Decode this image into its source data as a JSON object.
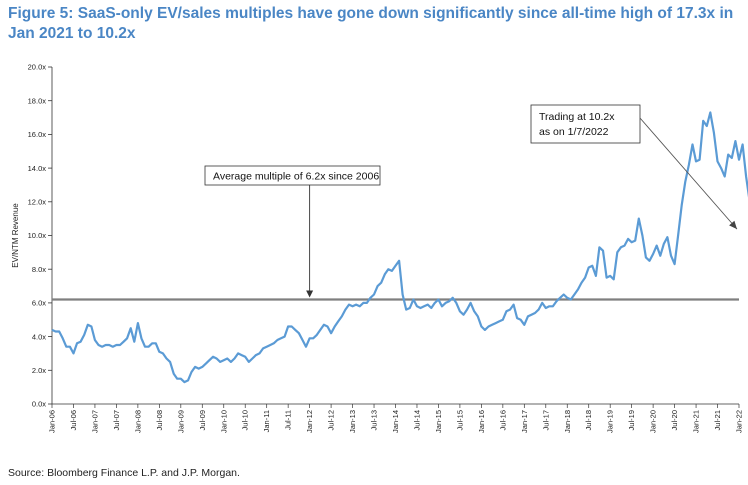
{
  "title": "Figure 5: SaaS-only EV/sales multiples have gone down significantly since all-time high of 17.3x in Jan 2021 to 10.2x",
  "source": "Source: Bloomberg Finance L.P. and J.P. Morgan.",
  "colors": {
    "title": "#4a86c5",
    "line": "#5b9bd5",
    "average": "#7f7f7f"
  },
  "chart_data": {
    "type": "line",
    "ylabel": "EV/NTM Revenue",
    "ylim": [
      0,
      20
    ],
    "y_ticks": [
      0,
      2,
      4,
      6,
      8,
      10,
      12,
      14,
      16,
      18,
      20
    ],
    "y_tick_labels": [
      "0.0x",
      "2.0x",
      "4.0x",
      "6.0x",
      "8.0x",
      "10.0x",
      "12.0x",
      "14.0x",
      "16.0x",
      "18.0x",
      "20.0x"
    ],
    "x_tick_labels": [
      "Jan-06",
      "Jul-06",
      "Jan-07",
      "Jul-07",
      "Jan-08",
      "Jul-08",
      "Jan-09",
      "Jul-09",
      "Jan-10",
      "Jul-10",
      "Jan-11",
      "Jul-11",
      "Jan-12",
      "Jul-12",
      "Jan-13",
      "Jul-13",
      "Jan-14",
      "Jul-14",
      "Jan-15",
      "Jul-15",
      "Jan-16",
      "Jul-16",
      "Jan-17",
      "Jul-17",
      "Jan-18",
      "Jul-18",
      "Jan-19",
      "Jul-19",
      "Jan-20",
      "Jul-20",
      "Jan-21",
      "Jul-21",
      "Jan-22"
    ],
    "grid": false,
    "legend": "none",
    "reference_line": {
      "value": 6.2,
      "label": "Average multiple of 6.2x since 2006"
    },
    "annotations": [
      {
        "text": [
          "Trading at 10.2x",
          "as on 1/7/2022"
        ],
        "points_to": [
          2022.0,
          10.2
        ]
      },
      {
        "text": [
          "Average multiple of 6.2x since 2006"
        ],
        "points_to": [
          2012.0,
          6.2
        ]
      }
    ],
    "series": [
      {
        "x_start": 2006.0,
        "x_step_years": 0.08333,
        "values": [
          4.4,
          4.3,
          4.3,
          3.9,
          3.4,
          3.4,
          3.0,
          3.6,
          3.7,
          4.1,
          4.7,
          4.6,
          3.8,
          3.5,
          3.4,
          3.5,
          3.5,
          3.4,
          3.5,
          3.5,
          3.7,
          3.9,
          4.5,
          3.7,
          4.8,
          3.9,
          3.4,
          3.4,
          3.6,
          3.6,
          3.1,
          3.0,
          2.7,
          2.5,
          1.8,
          1.5,
          1.5,
          1.3,
          1.4,
          1.9,
          2.2,
          2.1,
          2.2,
          2.4,
          2.6,
          2.8,
          2.7,
          2.5,
          2.6,
          2.7,
          2.5,
          2.7,
          3.0,
          2.9,
          2.8,
          2.5,
          2.7,
          2.9,
          3.0,
          3.3,
          3.4,
          3.5,
          3.6,
          3.8,
          3.9,
          4.0,
          4.6,
          4.6,
          4.4,
          4.2,
          3.8,
          3.4,
          3.9,
          3.9,
          4.1,
          4.4,
          4.7,
          4.6,
          4.2,
          4.6,
          4.9,
          5.2,
          5.6,
          5.9,
          5.8,
          5.9,
          5.8,
          6.0,
          6.0,
          6.3,
          6.5,
          7.0,
          7.2,
          7.7,
          8.0,
          7.9,
          8.2,
          8.5,
          6.5,
          5.6,
          5.7,
          6.2,
          5.8,
          5.7,
          5.8,
          5.9,
          5.7,
          6.0,
          6.2,
          5.8,
          6.0,
          6.1,
          6.3,
          6.0,
          5.5,
          5.3,
          5.6,
          6.0,
          5.5,
          5.2,
          4.6,
          4.4,
          4.6,
          4.7,
          4.8,
          4.9,
          5.0,
          5.5,
          5.6,
          5.9,
          5.1,
          5.0,
          4.7,
          5.2,
          5.3,
          5.4,
          5.6,
          6.0,
          5.7,
          5.8,
          5.8,
          6.1,
          6.3,
          6.5,
          6.3,
          6.2,
          6.5,
          6.8,
          7.2,
          7.5,
          8.1,
          8.2,
          7.6,
          9.3,
          9.1,
          7.5,
          7.6,
          7.4,
          9.0,
          9.3,
          9.4,
          9.8,
          9.6,
          9.7,
          11.0,
          10.0,
          8.7,
          8.5,
          8.9,
          9.4,
          8.8,
          9.5,
          9.9,
          8.8,
          8.3,
          10.0,
          11.8,
          13.2,
          14.2,
          15.4,
          14.4,
          14.5,
          16.8,
          16.5,
          17.3,
          16.1,
          14.4,
          14.0,
          13.5,
          14.8,
          14.6,
          15.6,
          14.5,
          15.4,
          13.5,
          12.0,
          10.2
        ]
      }
    ]
  }
}
